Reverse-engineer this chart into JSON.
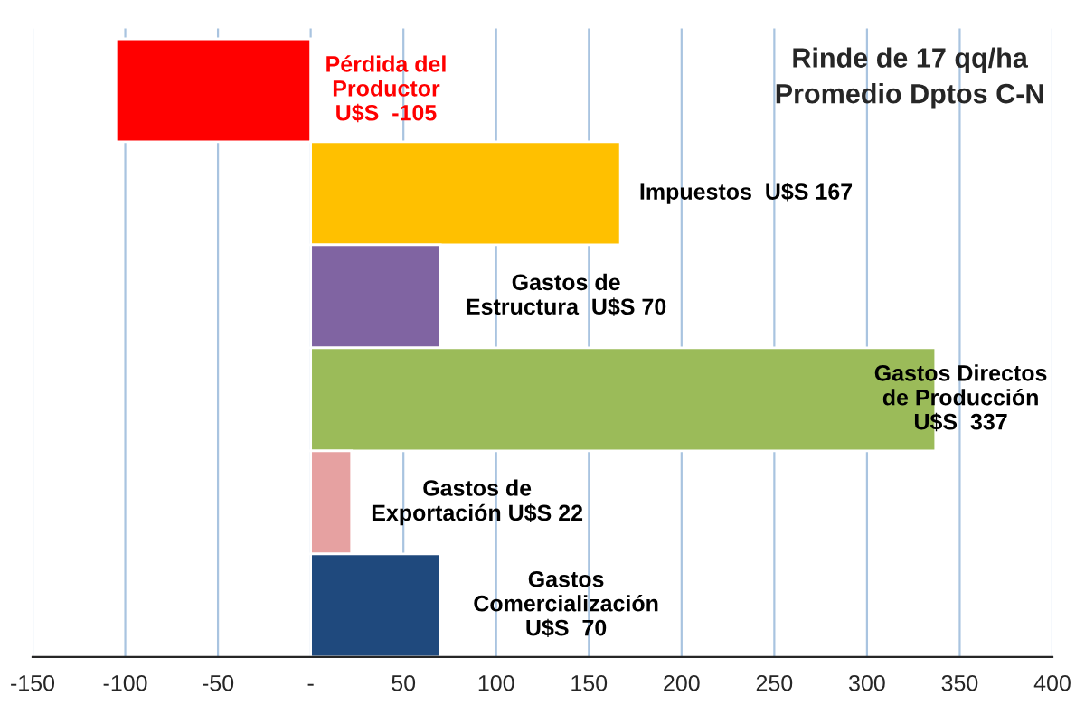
{
  "chart_data": {
    "type": "bar",
    "orientation": "horizontal",
    "title": "Rinde de 17 qq/ha\nPromedio Dptos C-N",
    "categories": [
      null,
      null,
      null,
      null,
      null,
      null
    ],
    "values": [
      -105,
      167,
      70,
      337,
      22,
      70
    ],
    "colors": [
      "#ff0000",
      "#ffc000",
      "#8064a2",
      "#9bbb59",
      "#e6a1a1",
      "#1f497d"
    ],
    "value_labels": [
      "Pérdida del\nProductor\nU$S  -105",
      "Impuestos  U$S 167",
      "Gastos de\nEstructura  U$S 70",
      "Gastos Directos\nde Producción\nU$S  337",
      "Gastos de\nExportación U$S 22",
      "Gastos\nComercialización\nU$S  70"
    ],
    "xlim": [
      -150,
      400
    ],
    "xticks": [
      -150,
      -100,
      -50,
      {
        "value": 0,
        "label": "-"
      },
      50,
      100,
      150,
      200,
      250,
      300,
      350,
      400
    ],
    "grid": "x"
  }
}
